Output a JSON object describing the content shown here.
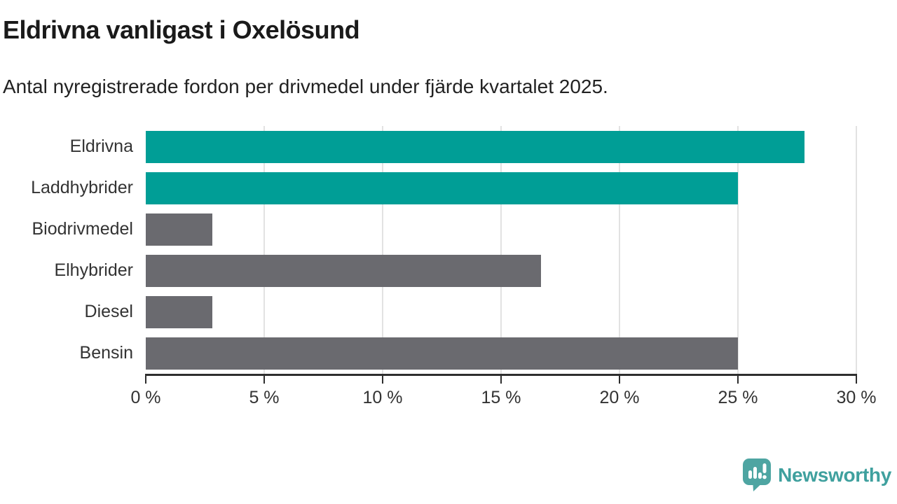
{
  "chart": {
    "title": "Eldrivna vanligast i Oxelösund",
    "subtitle": "Antal nyregistrerade fordon per drivmedel under fjärde kvartalet 2025."
  },
  "footer": {
    "brand": "Newsworthy"
  },
  "colors": {
    "highlight_teal": "#009E96",
    "neutral_gray": "#6A6A6F",
    "gridline": "#E2E2E2",
    "axis": "#2E2E2E",
    "label_text": "#333333",
    "brand_teal": "#3FA09E",
    "brand_icon_teal": "#4EA5A2"
  },
  "chart_data": {
    "type": "bar",
    "orientation": "horizontal",
    "title": "Eldrivna vanligast i Oxelösund",
    "subtitle": "Antal nyregistrerade fordon per drivmedel under fjärde kvartalet 2025.",
    "categories": [
      "Eldrivna",
      "Laddhybrider",
      "Biodrivmedel",
      "Elhybrider",
      "Diesel",
      "Bensin"
    ],
    "values": [
      27.8,
      25.0,
      2.8,
      16.7,
      2.8,
      25.0
    ],
    "bar_colors": [
      "#009E96",
      "#009E96",
      "#6A6A6F",
      "#6A6A6F",
      "#6A6A6F",
      "#6A6A6F"
    ],
    "xlabel": "",
    "ylabel": "",
    "xlim": [
      0,
      30
    ],
    "x_ticks": [
      {
        "value": 0,
        "label": "0 %"
      },
      {
        "value": 5,
        "label": "5 %"
      },
      {
        "value": 10,
        "label": "10 %"
      },
      {
        "value": 15,
        "label": "15 %"
      },
      {
        "value": 20,
        "label": "20 %"
      },
      {
        "value": 25,
        "label": "25 %"
      },
      {
        "value": 30,
        "label": "30 %"
      }
    ],
    "grid": "vertical",
    "legend": false
  }
}
